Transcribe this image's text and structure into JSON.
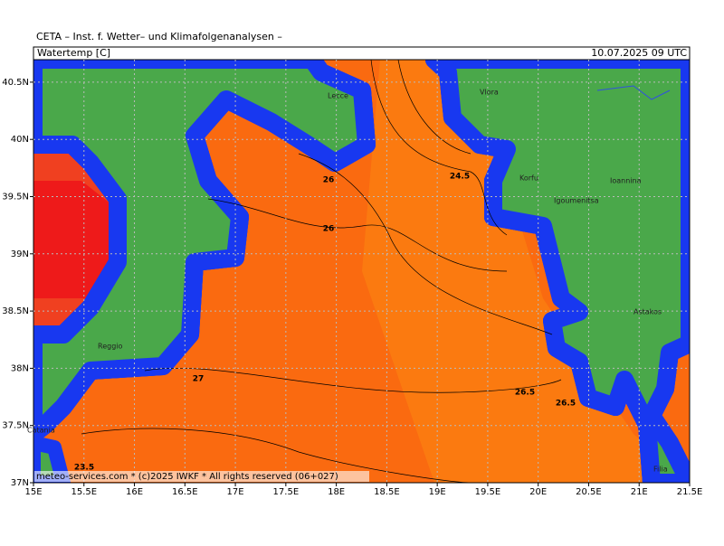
{
  "header": {
    "title": "CETA – Inst. f. Wetter– und Klimafolgenanalysen –",
    "variable": "Watertemp [C]",
    "datetime": "10.07.2025 09 UTC"
  },
  "map": {
    "x_labels": [
      "15E",
      "15.5E",
      "16E",
      "16.5E",
      "17E",
      "17.5E",
      "18E",
      "18.5E",
      "19E",
      "19.5E",
      "20E",
      "20.5E",
      "21E",
      "21.5E"
    ],
    "y_labels": [
      "40.5N",
      "40N",
      "39.5N",
      "39N",
      "38.5N",
      "38N",
      "37.5N",
      "37N"
    ],
    "contour_labels": [
      "26",
      "26",
      "24.5",
      "27",
      "26.5",
      "26.5",
      "23.5"
    ],
    "places": [
      "Vlora",
      "Lecce",
      "Korfu",
      "Igoumenitsa",
      "Ioannina",
      "Astakos",
      "Reggio",
      "Catania",
      "Filia"
    ],
    "footer": "meteo-services.com * (c)2025 IWKF * All rights reserved (06+027)"
  }
}
